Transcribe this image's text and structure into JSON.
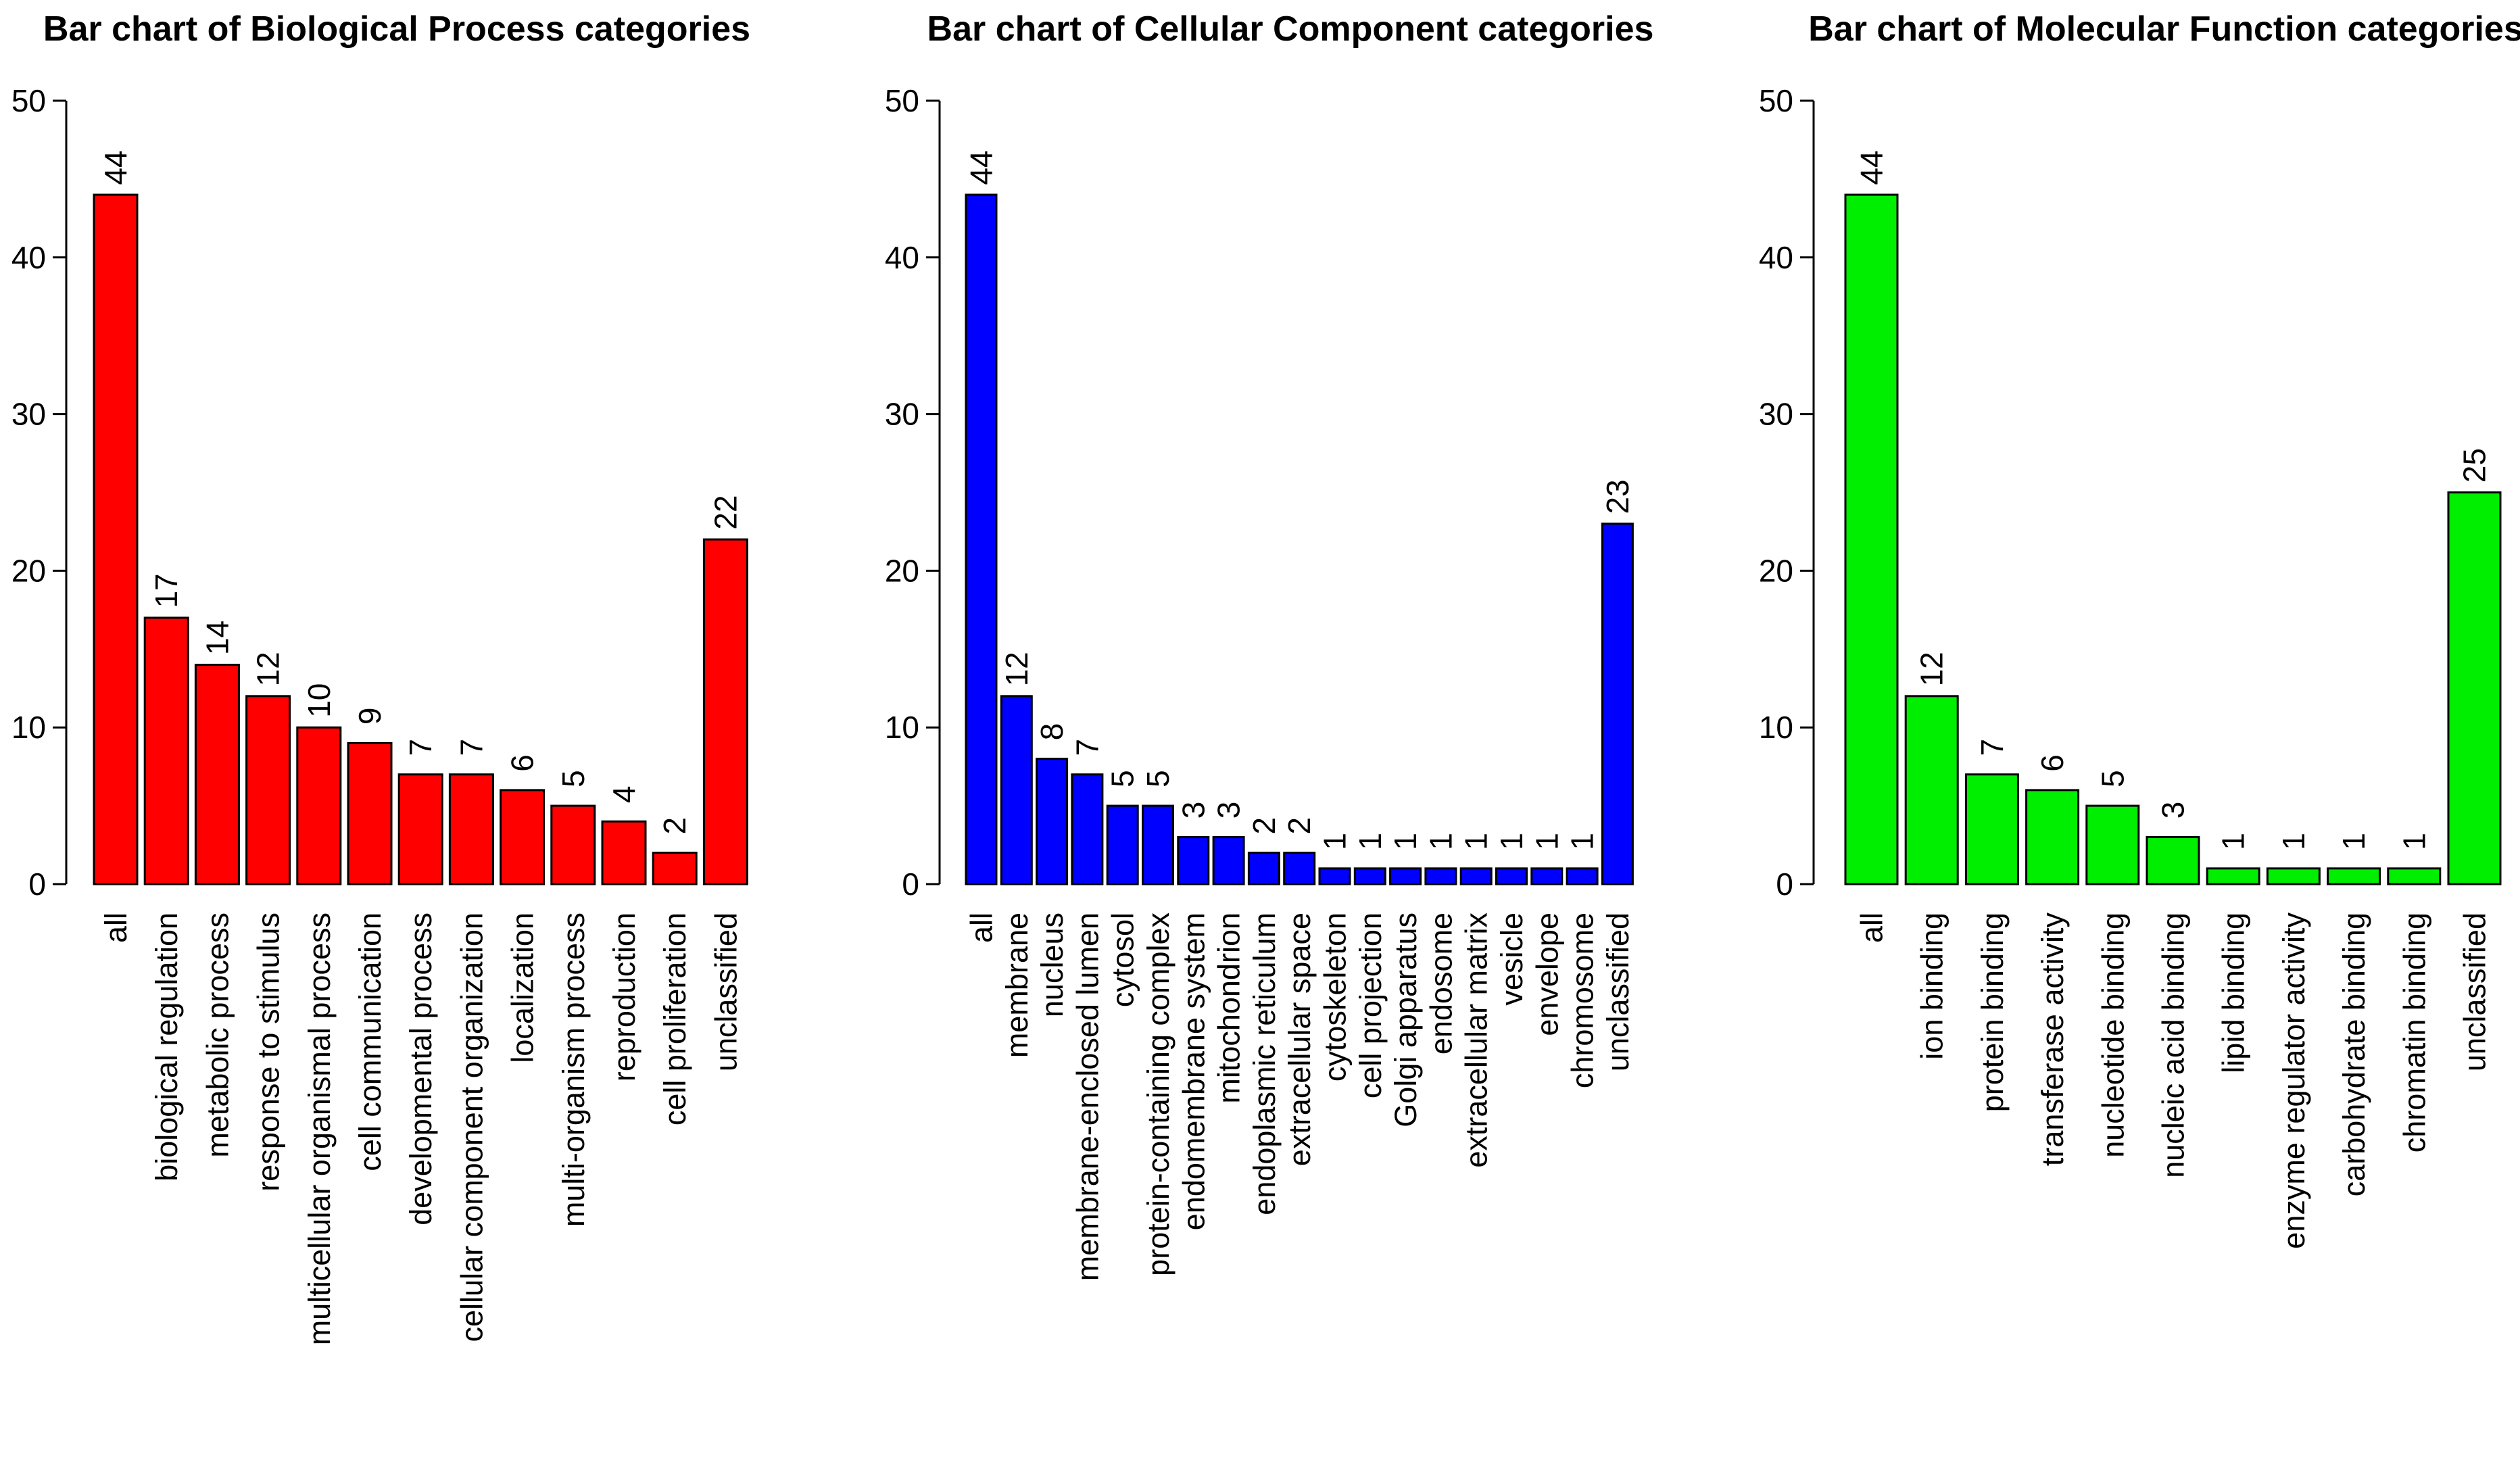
{
  "chart_data": [
    {
      "type": "bar",
      "title": "Bar chart of Biological Process categories",
      "color": "#ff0000",
      "ylim": [
        0,
        50
      ],
      "yticks": [
        0,
        10,
        20,
        30,
        40,
        50
      ],
      "xlabel": "",
      "ylabel": "",
      "categories": [
        "all",
        "biological regulation",
        "metabolic process",
        "response to stimulus",
        "multicellular organismal process",
        "cell communication",
        "developmental process",
        "cellular component organization",
        "localization",
        "multi-organism process",
        "reproduction",
        "cell proliferation",
        "unclassified"
      ],
      "values": [
        44,
        17,
        14,
        12,
        10,
        9,
        7,
        7,
        6,
        5,
        4,
        2,
        22
      ]
    },
    {
      "type": "bar",
      "title": "Bar chart of Cellular Component categories",
      "color": "#0000ff",
      "ylim": [
        0,
        50
      ],
      "yticks": [
        0,
        10,
        20,
        30,
        40,
        50
      ],
      "xlabel": "",
      "ylabel": "",
      "categories": [
        "all",
        "membrane",
        "nucleus",
        "membrane-enclosed lumen",
        "cytosol",
        "protein-containing complex",
        "endomembrane system",
        "mitochondrion",
        "endoplasmic reticulum",
        "extracellular space",
        "cytoskeleton",
        "cell projection",
        "Golgi apparatus",
        "endosome",
        "extracellular matrix",
        "vesicle",
        "envelope",
        "chromosome",
        "unclassified"
      ],
      "values": [
        44,
        12,
        8,
        7,
        5,
        5,
        3,
        3,
        2,
        2,
        1,
        1,
        1,
        1,
        1,
        1,
        1,
        1,
        23
      ]
    },
    {
      "type": "bar",
      "title": "Bar chart of Molecular Function categories",
      "color": "#00ee00",
      "ylim": [
        0,
        50
      ],
      "yticks": [
        0,
        10,
        20,
        30,
        40,
        50
      ],
      "xlabel": "",
      "ylabel": "",
      "categories": [
        "all",
        "ion binding",
        "protein binding",
        "transferase activity",
        "nucleotide binding",
        "nucleic acid binding",
        "lipid binding",
        "enzyme regulator activity",
        "carbohydrate binding",
        "chromatin binding",
        "unclassified"
      ],
      "values": [
        44,
        12,
        7,
        6,
        5,
        3,
        1,
        1,
        1,
        1,
        25
      ]
    }
  ]
}
